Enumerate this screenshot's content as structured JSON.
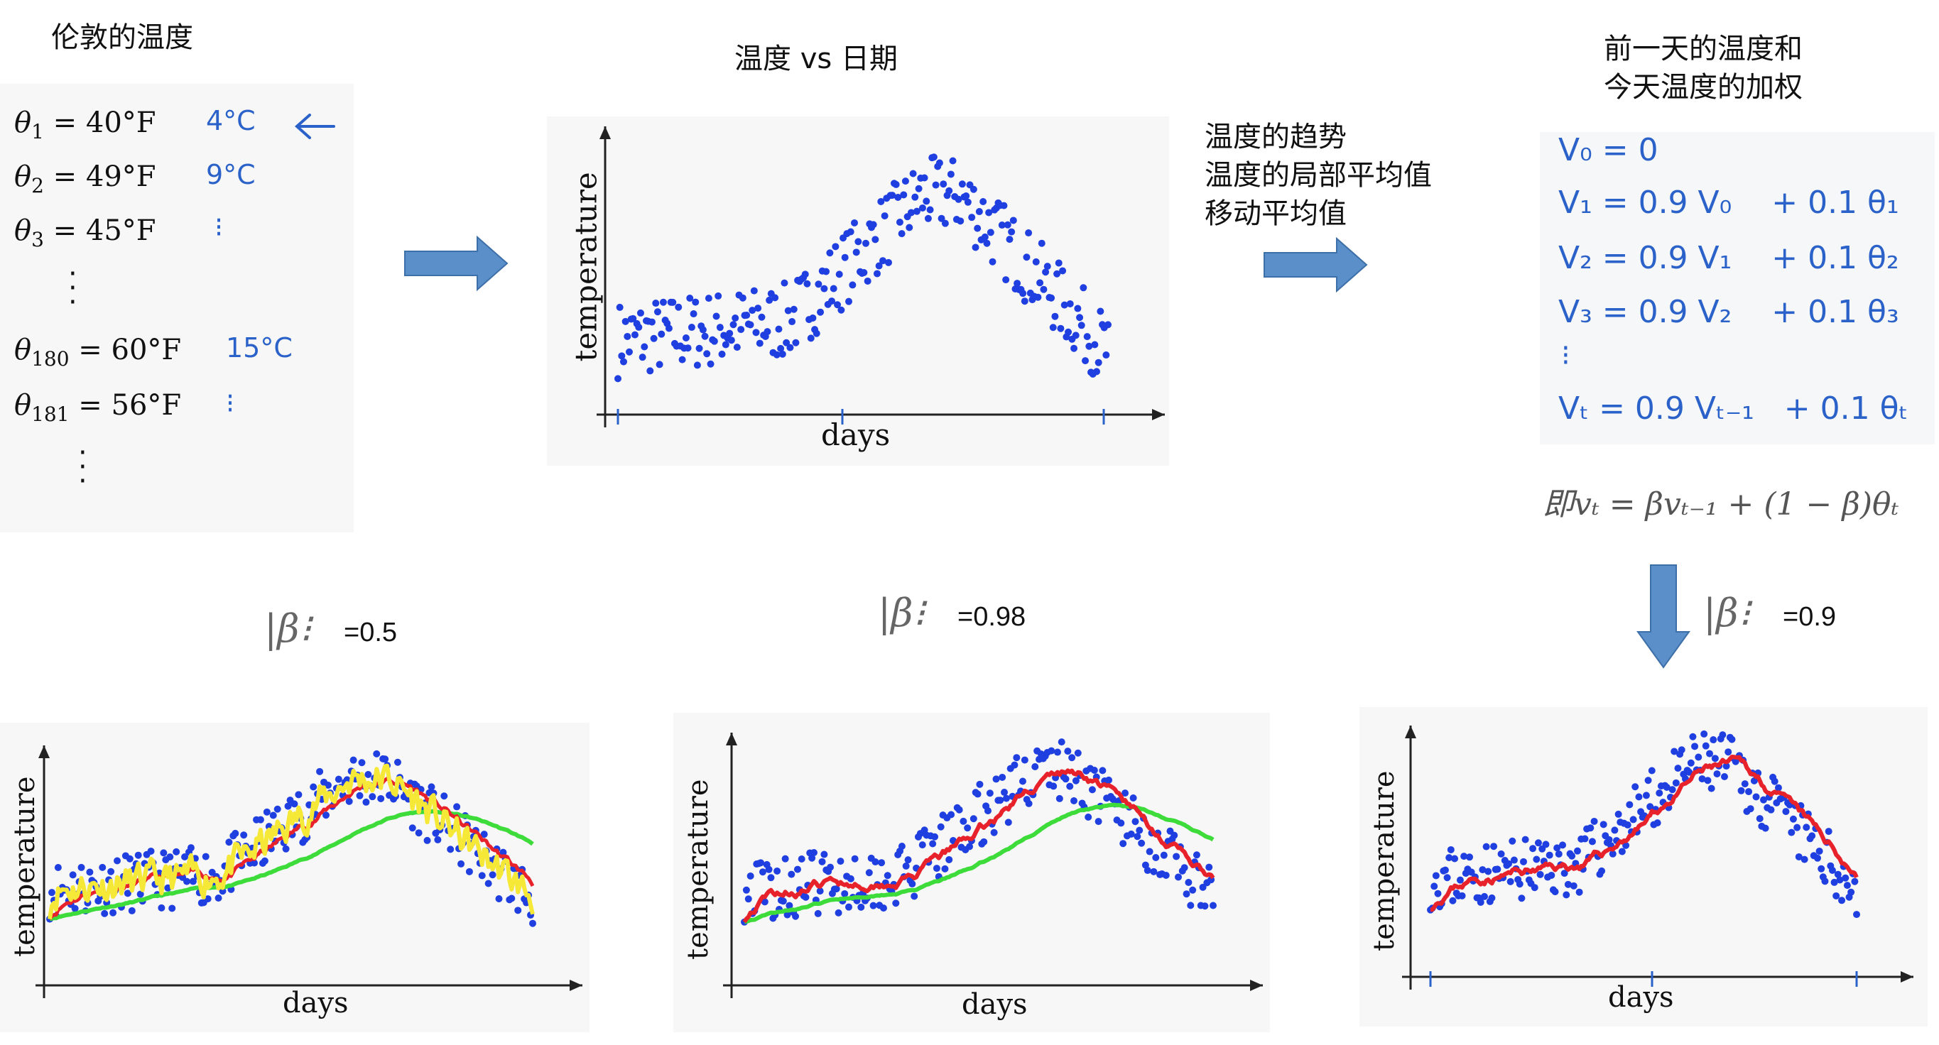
{
  "top_left": {
    "title": "伦敦的温度",
    "rows": [
      {
        "sym": "θ",
        "sub": "1",
        "val": "= 40°F",
        "note": "4°C"
      },
      {
        "sym": "θ",
        "sub": "2",
        "val": "= 49°F",
        "note": "9°C"
      },
      {
        "sym": "θ",
        "sub": "3",
        "val": "= 45°F",
        "note": ""
      },
      {
        "sym": "θ",
        "sub": "180",
        "val": "= 60°F",
        "note": "15°C"
      },
      {
        "sym": "θ",
        "sub": "181",
        "val": "= 56°F",
        "note": ""
      }
    ]
  },
  "top_middle": {
    "title": "温度 vs 日期",
    "xlabel": "days",
    "ylabel": "temperature"
  },
  "middle_text": {
    "line1": "温度的趋势",
    "line2": "温度的局部平均值",
    "line3": "移动平均值"
  },
  "top_right": {
    "title_line1": "前一天的温度和",
    "title_line2": "今天温度的加权",
    "hand_lines": [
      "V₀ = 0",
      "V₁ = 0.9 V₀    + 0.1 θ₁",
      "V₂ = 0.9 V₁    + 0.1 θ₂",
      "V₃ = 0.9 V₂    + 0.1 θ₃",
      "Vₜ = 0.9 Vₜ₋₁   + 0.1 θₜ"
    ],
    "formula": "即vₜ = βvₜ₋₁ + (1 − β)θₜ"
  },
  "bottom": [
    {
      "beta_symbol": "β",
      "beta_value": "=0.5",
      "xlabel": "days",
      "ylabel": "temperature"
    },
    {
      "beta_symbol": "β",
      "beta_value": "=0.98",
      "xlabel": "days",
      "ylabel": "temperature"
    },
    {
      "beta_symbol": "β",
      "beta_value": "=0.9",
      "xlabel": "days",
      "ylabel": "temperature"
    }
  ],
  "colors": {
    "dots": "#1f3fe0",
    "red": "#e8222a",
    "green": "#3ddc3a",
    "yellow": "#f6e837",
    "arrow": "#5b8fc9",
    "hand": "#2b62c9"
  }
}
